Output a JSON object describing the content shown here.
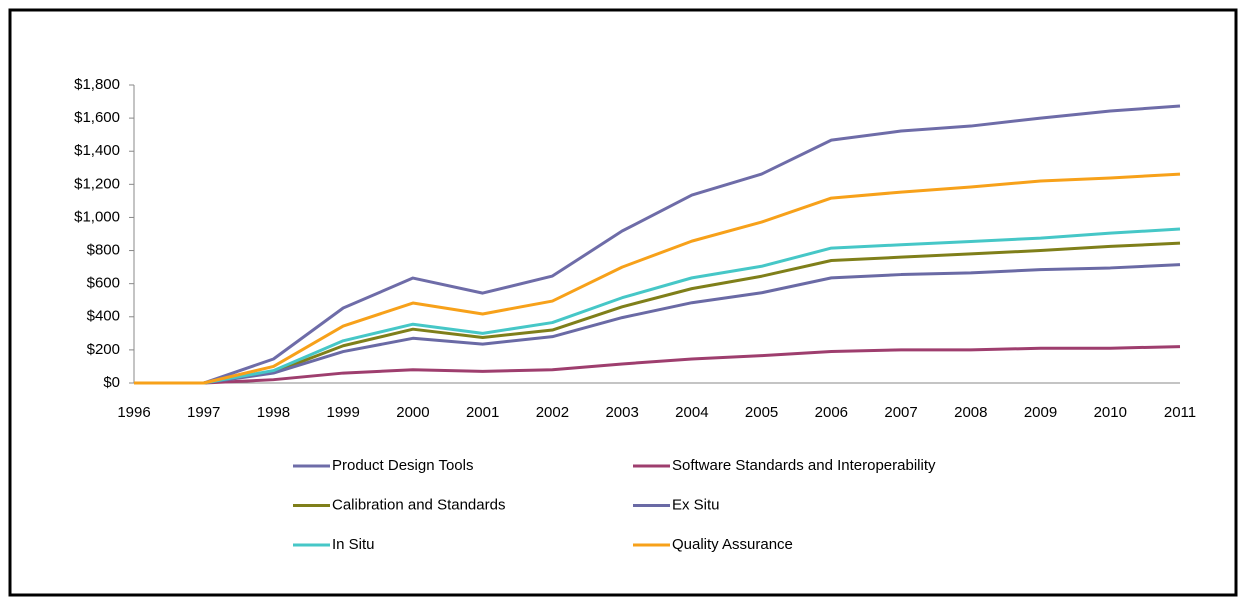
{
  "chart_data": {
    "type": "line",
    "categories": [
      "1996",
      "1997",
      "1998",
      "1999",
      "2000",
      "2001",
      "2002",
      "2003",
      "2004",
      "2005",
      "2006",
      "2007",
      "2008",
      "2009",
      "2010",
      "2011"
    ],
    "series": [
      {
        "name": "Product Design Tools",
        "color": "#6e6ca8",
        "values": [
          0,
          0,
          145,
          453,
          634,
          543,
          646,
          918,
          1135,
          1262,
          1467,
          1522,
          1552,
          1600,
          1643,
          1673
        ]
      },
      {
        "name": "Software Standards and Interoperability",
        "color": "#9e3e6e",
        "values": [
          0,
          0,
          20,
          60,
          80,
          70,
          80,
          115,
          145,
          165,
          190,
          200,
          200,
          210,
          210,
          220
        ]
      },
      {
        "name": "Calibration and Standards",
        "color": "#7f7f1a",
        "values": [
          0,
          0,
          65,
          225,
          325,
          275,
          320,
          460,
          570,
          645,
          740,
          760,
          780,
          800,
          825,
          845
        ]
      },
      {
        "name": "Ex Situ",
        "color": "#6a6aa5",
        "values": [
          0,
          0,
          60,
          190,
          270,
          235,
          280,
          395,
          485,
          545,
          635,
          655,
          665,
          685,
          695,
          715
        ]
      },
      {
        "name": "In Situ",
        "color": "#46c7c7",
        "values": [
          0,
          0,
          75,
          255,
          355,
          300,
          365,
          515,
          635,
          705,
          815,
          835,
          855,
          875,
          905,
          930
        ]
      },
      {
        "name": "Quality Assurance",
        "color": "#f7a11a",
        "values": [
          0,
          0,
          100,
          344,
          483,
          417,
          495,
          700,
          857,
          972,
          1117,
          1153,
          1184,
          1220,
          1238,
          1262
        ]
      }
    ],
    "ylim": [
      0,
      1800
    ],
    "yticks": [
      {
        "value": 0,
        "label": "$0"
      },
      {
        "value": 200,
        "label": "$200"
      },
      {
        "value": 400,
        "label": "$400"
      },
      {
        "value": 600,
        "label": "$600"
      },
      {
        "value": 800,
        "label": "$800"
      },
      {
        "value": 1000,
        "label": "$1,000"
      },
      {
        "value": 1200,
        "label": "$1,200"
      },
      {
        "value": 1400,
        "label": "$1,400"
      },
      {
        "value": 1600,
        "label": "$1,600"
      },
      {
        "value": 1800,
        "label": "$1,800"
      }
    ],
    "grid": false
  }
}
